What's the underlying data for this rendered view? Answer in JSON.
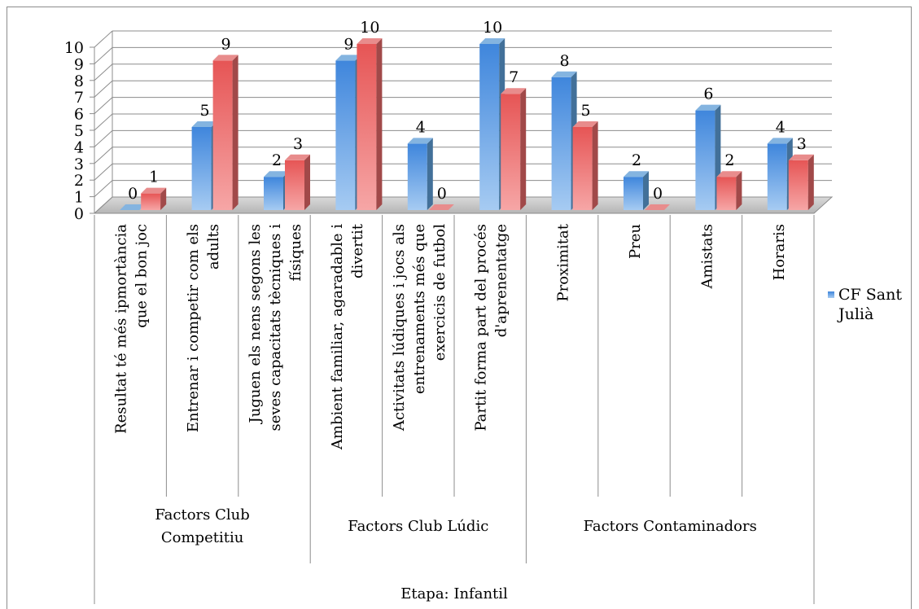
{
  "chart_data": {
    "type": "bar",
    "style": "3d-clustered-column",
    "ylim": [
      0,
      10
    ],
    "yticks": [
      "0",
      "1",
      "2",
      "3",
      "4",
      "5",
      "6",
      "7",
      "8",
      "9",
      "10"
    ],
    "grid": true,
    "legend_position": "right",
    "categories": [
      "Resultat té més ipmortància que el bon joc",
      "Entrenar i competir com els adults",
      "Juguen els nens segons les seves capacitats tècniques i físiques",
      "Ambient familiar, agaradable i divertit",
      "Activitats lúdiques i jocs als entrenaments més que exercicis de futbol",
      "Partit forma part del procés d'aprenentatge",
      "Proximitat",
      "Preu",
      "Amistats",
      "Horaris"
    ],
    "category_label_lines": [
      [
        "Resultat té més ipmortància",
        "que el bon joc"
      ],
      [
        "Entrenar i competir com els",
        "adults"
      ],
      [
        "Juguen els nens segons les",
        "seves capacitats tècniques i",
        "físiques"
      ],
      [
        "Ambient familiar, agaradable i",
        "divertit"
      ],
      [
        "Activitats lúdiques i jocs als",
        "entrenaments més que",
        "exercicis de futbol"
      ],
      [
        "Partit forma part del procés",
        "d'aprenentatge"
      ],
      [
        "Proximitat"
      ],
      [
        "Preu"
      ],
      [
        "Amistats"
      ],
      [
        "Horaris"
      ]
    ],
    "groups": [
      {
        "label_lines": [
          "Factors Club",
          "Competitiu"
        ],
        "span": [
          0,
          2
        ]
      },
      {
        "label_lines": [
          "Factors Club Lúdic"
        ],
        "span": [
          3,
          5
        ]
      },
      {
        "label_lines": [
          "Factors Contaminadors"
        ],
        "span": [
          6,
          9
        ]
      }
    ],
    "outer_group": "Etapa: Infantil",
    "series": [
      {
        "name": "CF Sant Julià",
        "legend_lines": [
          "CF Sant",
          "Julià"
        ],
        "color": "#5b9bd5",
        "values": [
          0,
          5,
          2,
          9,
          4,
          10,
          8,
          2,
          6,
          4
        ]
      },
      {
        "color": "#e06666",
        "values": [
          1,
          9,
          3,
          10,
          0,
          7,
          5,
          0,
          2,
          3
        ]
      }
    ]
  }
}
